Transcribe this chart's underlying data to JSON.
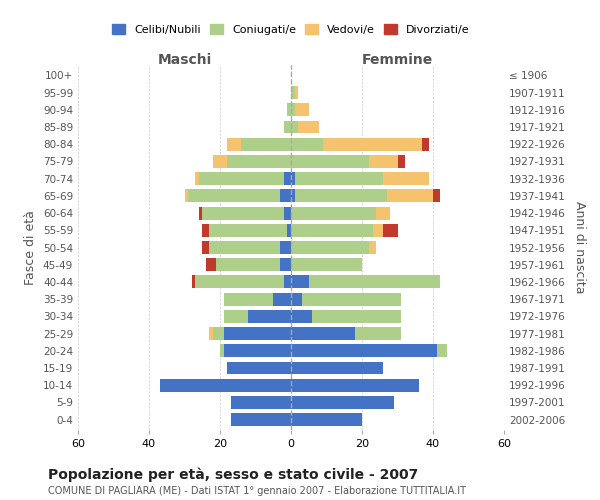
{
  "age_groups": [
    "0-4",
    "5-9",
    "10-14",
    "15-19",
    "20-24",
    "25-29",
    "30-34",
    "35-39",
    "40-44",
    "45-49",
    "50-54",
    "55-59",
    "60-64",
    "65-69",
    "70-74",
    "75-79",
    "80-84",
    "85-89",
    "90-94",
    "95-99",
    "100+"
  ],
  "birth_years": [
    "2002-2006",
    "1997-2001",
    "1992-1996",
    "1987-1991",
    "1982-1986",
    "1977-1981",
    "1972-1976",
    "1967-1971",
    "1962-1966",
    "1957-1961",
    "1952-1956",
    "1947-1951",
    "1942-1946",
    "1937-1941",
    "1932-1936",
    "1927-1931",
    "1922-1926",
    "1917-1921",
    "1912-1916",
    "1907-1911",
    "≤ 1906"
  ],
  "maschi": {
    "celibi": [
      17,
      17,
      37,
      18,
      19,
      19,
      12,
      5,
      2,
      3,
      3,
      1,
      2,
      3,
      2,
      0,
      0,
      0,
      0,
      0,
      0
    ],
    "coniugati": [
      0,
      0,
      0,
      0,
      1,
      3,
      7,
      14,
      25,
      18,
      20,
      22,
      23,
      26,
      24,
      18,
      14,
      2,
      1,
      0,
      0
    ],
    "vedovi": [
      0,
      0,
      0,
      0,
      0,
      1,
      0,
      0,
      0,
      0,
      0,
      0,
      0,
      1,
      1,
      4,
      4,
      0,
      0,
      0,
      0
    ],
    "divorziati": [
      0,
      0,
      0,
      0,
      0,
      0,
      0,
      0,
      1,
      3,
      2,
      2,
      1,
      0,
      0,
      0,
      0,
      0,
      0,
      0,
      0
    ]
  },
  "femmine": {
    "nubili": [
      20,
      29,
      36,
      26,
      41,
      18,
      6,
      3,
      5,
      0,
      0,
      0,
      0,
      1,
      1,
      0,
      0,
      0,
      0,
      0,
      0
    ],
    "coniugate": [
      0,
      0,
      0,
      0,
      3,
      13,
      25,
      28,
      37,
      20,
      22,
      23,
      24,
      26,
      25,
      22,
      9,
      2,
      1,
      1,
      0
    ],
    "vedove": [
      0,
      0,
      0,
      0,
      0,
      0,
      0,
      0,
      0,
      0,
      2,
      3,
      4,
      13,
      13,
      8,
      28,
      6,
      4,
      1,
      0
    ],
    "divorziate": [
      0,
      0,
      0,
      0,
      0,
      0,
      0,
      0,
      0,
      0,
      0,
      4,
      0,
      2,
      0,
      2,
      2,
      0,
      0,
      0,
      0
    ]
  },
  "colors": {
    "celibi_nubili": "#4472C4",
    "coniugati": "#AECF8A",
    "vedovi": "#F5C36E",
    "divorziati": "#C0392B"
  },
  "xlim": 60,
  "title": "Popolazione per età, sesso e stato civile - 2007",
  "subtitle": "COMUNE DI PAGLIARA (ME) - Dati ISTAT 1° gennaio 2007 - Elaborazione TUTTITALIA.IT",
  "ylabel_left": "Fasce di età",
  "ylabel_right": "Anni di nascita",
  "xlabel_maschi": "Maschi",
  "xlabel_femmine": "Femmine",
  "background_color": "#ffffff",
  "grid_color": "#cccccc"
}
